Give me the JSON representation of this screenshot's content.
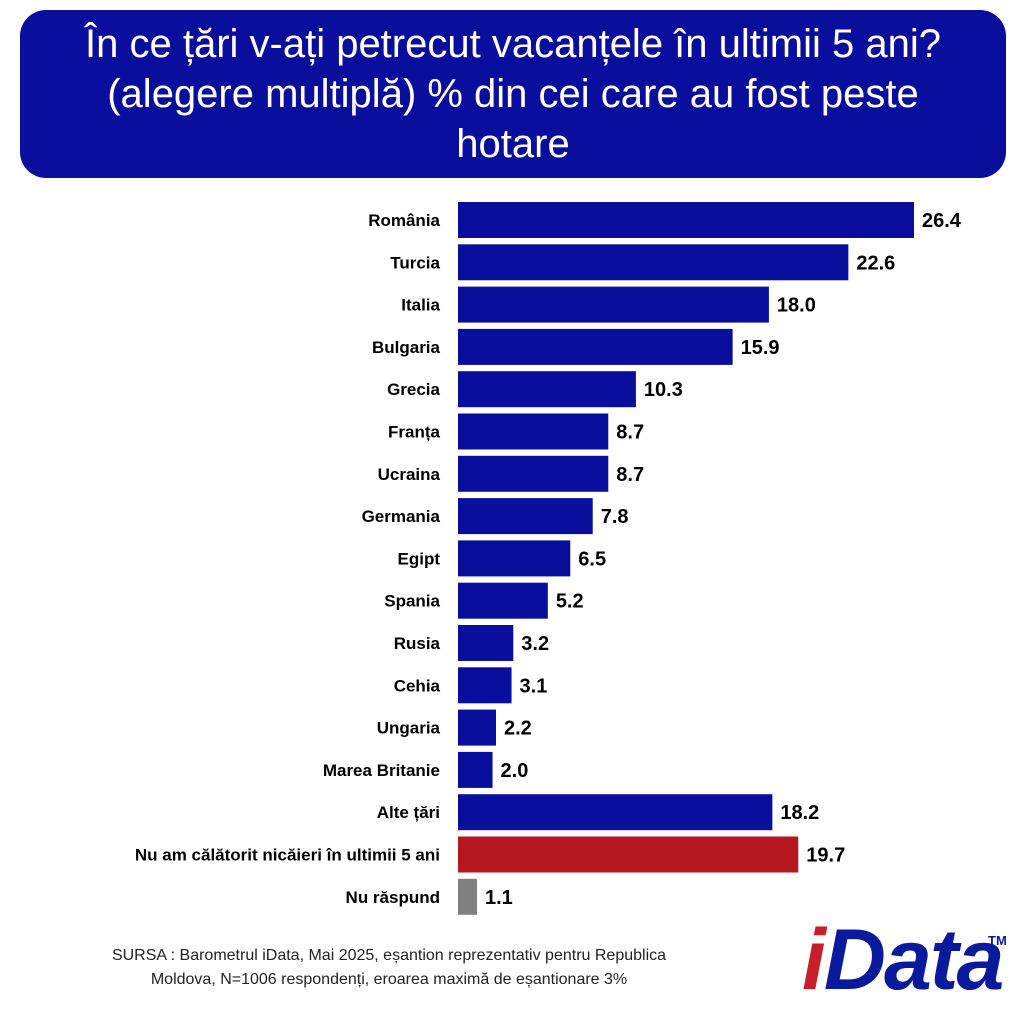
{
  "header": {
    "title": "În ce țări v-ați petrecut vacanțele în ultimii 5 ani? (alegere multiplă) % din cei care au fost peste hotare"
  },
  "chart_data": {
    "type": "bar",
    "orientation": "horizontal",
    "title": "În ce țări v-ați petrecut vacanțele în ultimii 5 ani? (alegere multiplă) % din cei care au fost peste hotare",
    "categories": [
      "România",
      "Turcia",
      "Italia",
      "Bulgaria",
      "Grecia",
      "Franța",
      "Ucraina",
      "Germania",
      "Egipt",
      "Spania",
      "Rusia",
      "Cehia",
      "Ungaria",
      "Marea Britanie",
      "Alte țări",
      "Nu am călătorit nicăieri în ultimii 5 ani",
      "Nu răspund"
    ],
    "values": [
      26.4,
      22.6,
      18.0,
      15.9,
      10.3,
      8.7,
      8.7,
      7.8,
      6.5,
      5.2,
      3.2,
      3.1,
      2.2,
      2.0,
      18.2,
      19.7,
      1.1
    ],
    "value_labels": [
      "26.4",
      "22.6",
      "18.0",
      "15.9",
      "10.3",
      "8.7",
      "8.7",
      "7.8",
      "6.5",
      "5.2",
      "3.2",
      "3.1",
      "2.2",
      "2.0",
      "18.2",
      "19.7",
      "1.1"
    ],
    "bar_colors": [
      "#0a0e9c",
      "#0a0e9c",
      "#0a0e9c",
      "#0a0e9c",
      "#0a0e9c",
      "#0a0e9c",
      "#0a0e9c",
      "#0a0e9c",
      "#0a0e9c",
      "#0a0e9c",
      "#0a0e9c",
      "#0a0e9c",
      "#0a0e9c",
      "#0a0e9c",
      "#0a0e9c",
      "#b5171f",
      "#808080"
    ],
    "xlim": [
      0,
      26.4
    ],
    "grid": false,
    "legend": "none"
  },
  "footer": {
    "source_line1": "SURSA : Barometrul iData, Mai 2025, eșantion reprezentativ pentru Republica",
    "source_line2": "Moldova, N=1006 respondenți, eroarea maximă de eșantionare 3%"
  },
  "logo": {
    "i": "i",
    "rest": "Data",
    "tm": "TM"
  },
  "colors": {
    "primary_blue": "#0a0e9c",
    "highlight_red": "#b5171f",
    "neutral_grey": "#808080"
  }
}
